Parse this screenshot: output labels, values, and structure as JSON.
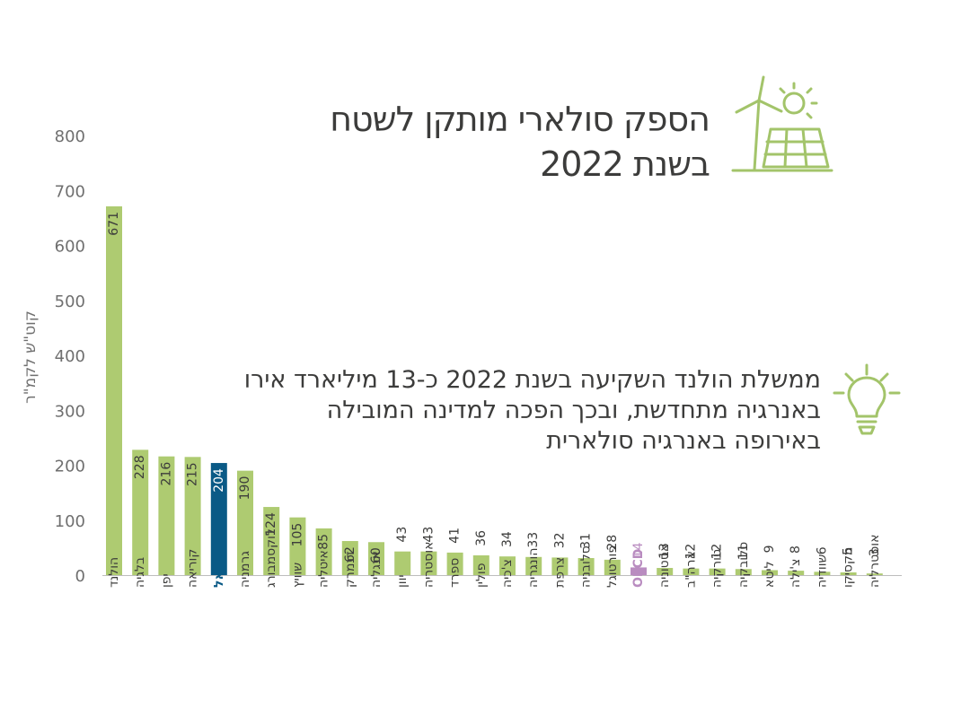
{
  "colors": {
    "bar": "#aecb71",
    "highlight": "#0a5a86",
    "oecd": "#b98cc0",
    "icon": "#a3c46a",
    "text": "#3c3c3b",
    "tick": "#6f6f6f"
  },
  "header": {
    "title_line1": "הספק סולארי מותקן לשטח",
    "title_line2": "בשנת 2022",
    "icon": "solar-panel-wind-turbine-sun-icon"
  },
  "note": {
    "line1": "ממשלת הולנד השקיעה בשנת 2022 כ-13 מיליארד אירו",
    "line2": "באנרגיה מתחדשת, ובכך הפכה למדינה המובילה",
    "line3": "באירופה באנרגיה סולארית",
    "icon": "lightbulb-icon"
  },
  "chart_data": {
    "type": "bar",
    "ylabel": "קוט\"ש לקמ\"ר",
    "ylim": [
      0,
      800
    ],
    "yticks": [
      0,
      100,
      200,
      300,
      400,
      500,
      600,
      700,
      800
    ],
    "grid": false,
    "categories": [
      "הולנד",
      "בלגיה",
      "יפן",
      "קוריאה",
      "ישראל",
      "גרמניה",
      "לוקסמבורג",
      "שוויץ",
      "איטליה",
      "דנמרק",
      "אנגליה",
      "יוון",
      "אוסטריה",
      "ספרד",
      "פולין",
      "צ'כיה",
      "הונגריה",
      "צרפת",
      "סלובניה",
      "פורטוגל",
      "OECD",
      "אסטוניה",
      "ארה\"ב",
      "טורקיה",
      "סלובקיה",
      "ליטא",
      "צ'ילה",
      "שוודיה",
      "מקסיקו",
      "אוסטרליה"
    ],
    "values": [
      671,
      228,
      216,
      215,
      204,
      190,
      124,
      105,
      85,
      62,
      60,
      43,
      43,
      41,
      36,
      34,
      33,
      32,
      31,
      28,
      14,
      13,
      12,
      12,
      11,
      9,
      8,
      6,
      5,
      3
    ],
    "highlight": {
      "ישראל": "highlight",
      "OECD": "oecd"
    }
  }
}
